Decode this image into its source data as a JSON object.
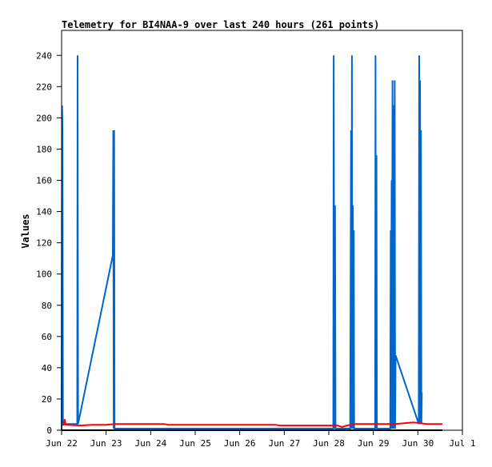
{
  "chart_data": {
    "type": "line",
    "title": "Telemetry for BI4NAA-9 over last 240 hours (261 points)",
    "xlabel": "",
    "ylabel": "Values",
    "x_tick_labels": [
      "Jun 22",
      "Jun 23",
      "Jun 24",
      "Jun 25",
      "Jun 26",
      "Jun 27",
      "Jun 28",
      "Jun 29",
      "Jun 30",
      "Jul 1"
    ],
    "y_ticks": [
      0,
      20,
      40,
      60,
      80,
      100,
      120,
      140,
      160,
      180,
      200,
      220,
      240
    ],
    "xlim": [
      0,
      9
    ],
    "ylim": [
      0,
      256
    ],
    "grid": false,
    "colors": {
      "blue": "#0066cc",
      "red": "#ff0000",
      "black": "#000000"
    },
    "series": [
      {
        "color": "#0066cc",
        "points": [
          [
            0.0,
            0
          ],
          [
            0.01,
            208
          ],
          [
            0.02,
            194
          ],
          [
            0.03,
            4
          ],
          [
            0.35,
            4
          ],
          [
            0.36,
            240
          ],
          [
            0.37,
            4
          ],
          [
            1.15,
            112
          ],
          [
            1.16,
            192
          ],
          [
            1.17,
            1
          ],
          [
            1.18,
            192
          ],
          [
            1.19,
            1
          ],
          [
            6.1,
            1
          ],
          [
            6.11,
            240
          ],
          [
            6.12,
            88
          ],
          [
            6.13,
            1
          ],
          [
            6.14,
            144
          ],
          [
            6.15,
            1
          ],
          [
            6.48,
            1
          ],
          [
            6.49,
            96
          ],
          [
            6.5,
            192
          ],
          [
            6.51,
            1
          ],
          [
            6.52,
            240
          ],
          [
            6.53,
            1
          ],
          [
            6.54,
            144
          ],
          [
            6.55,
            1
          ],
          [
            6.56,
            128
          ],
          [
            6.57,
            1
          ],
          [
            7.04,
            1
          ],
          [
            7.05,
            240
          ],
          [
            7.06,
            1
          ],
          [
            7.07,
            176
          ],
          [
            7.08,
            1
          ],
          [
            7.38,
            1
          ],
          [
            7.39,
            128
          ],
          [
            7.4,
            1
          ],
          [
            7.41,
            160
          ],
          [
            7.42,
            1
          ],
          [
            7.43,
            224
          ],
          [
            7.44,
            1
          ],
          [
            7.45,
            208
          ],
          [
            7.46,
            1
          ],
          [
            7.48,
            224
          ],
          [
            7.49,
            1
          ],
          [
            7.5,
            48
          ],
          [
            8.02,
            4
          ],
          [
            8.03,
            240
          ],
          [
            8.04,
            4
          ],
          [
            8.05,
            224
          ],
          [
            8.06,
            4
          ],
          [
            8.07,
            192
          ],
          [
            8.08,
            4
          ],
          [
            8.09,
            24
          ]
        ]
      },
      {
        "color": "#ff0000",
        "points": [
          [
            0.0,
            3.5
          ],
          [
            0.05,
            3.5
          ],
          [
            0.07,
            7
          ],
          [
            0.09,
            3.5
          ],
          [
            0.4,
            3
          ],
          [
            0.7,
            3.5
          ],
          [
            1.0,
            3.5
          ],
          [
            1.2,
            4
          ],
          [
            2.3,
            4
          ],
          [
            2.4,
            3.5
          ],
          [
            4.8,
            3.5
          ],
          [
            4.9,
            3
          ],
          [
            6.2,
            3
          ],
          [
            6.3,
            2
          ],
          [
            6.4,
            3
          ],
          [
            6.6,
            4
          ],
          [
            7.5,
            4
          ],
          [
            7.9,
            5
          ],
          [
            8.2,
            4
          ],
          [
            8.55,
            4
          ]
        ]
      },
      {
        "color": "#000000",
        "points": [
          [
            0.0,
            0
          ],
          [
            8.55,
            0
          ]
        ]
      }
    ]
  }
}
